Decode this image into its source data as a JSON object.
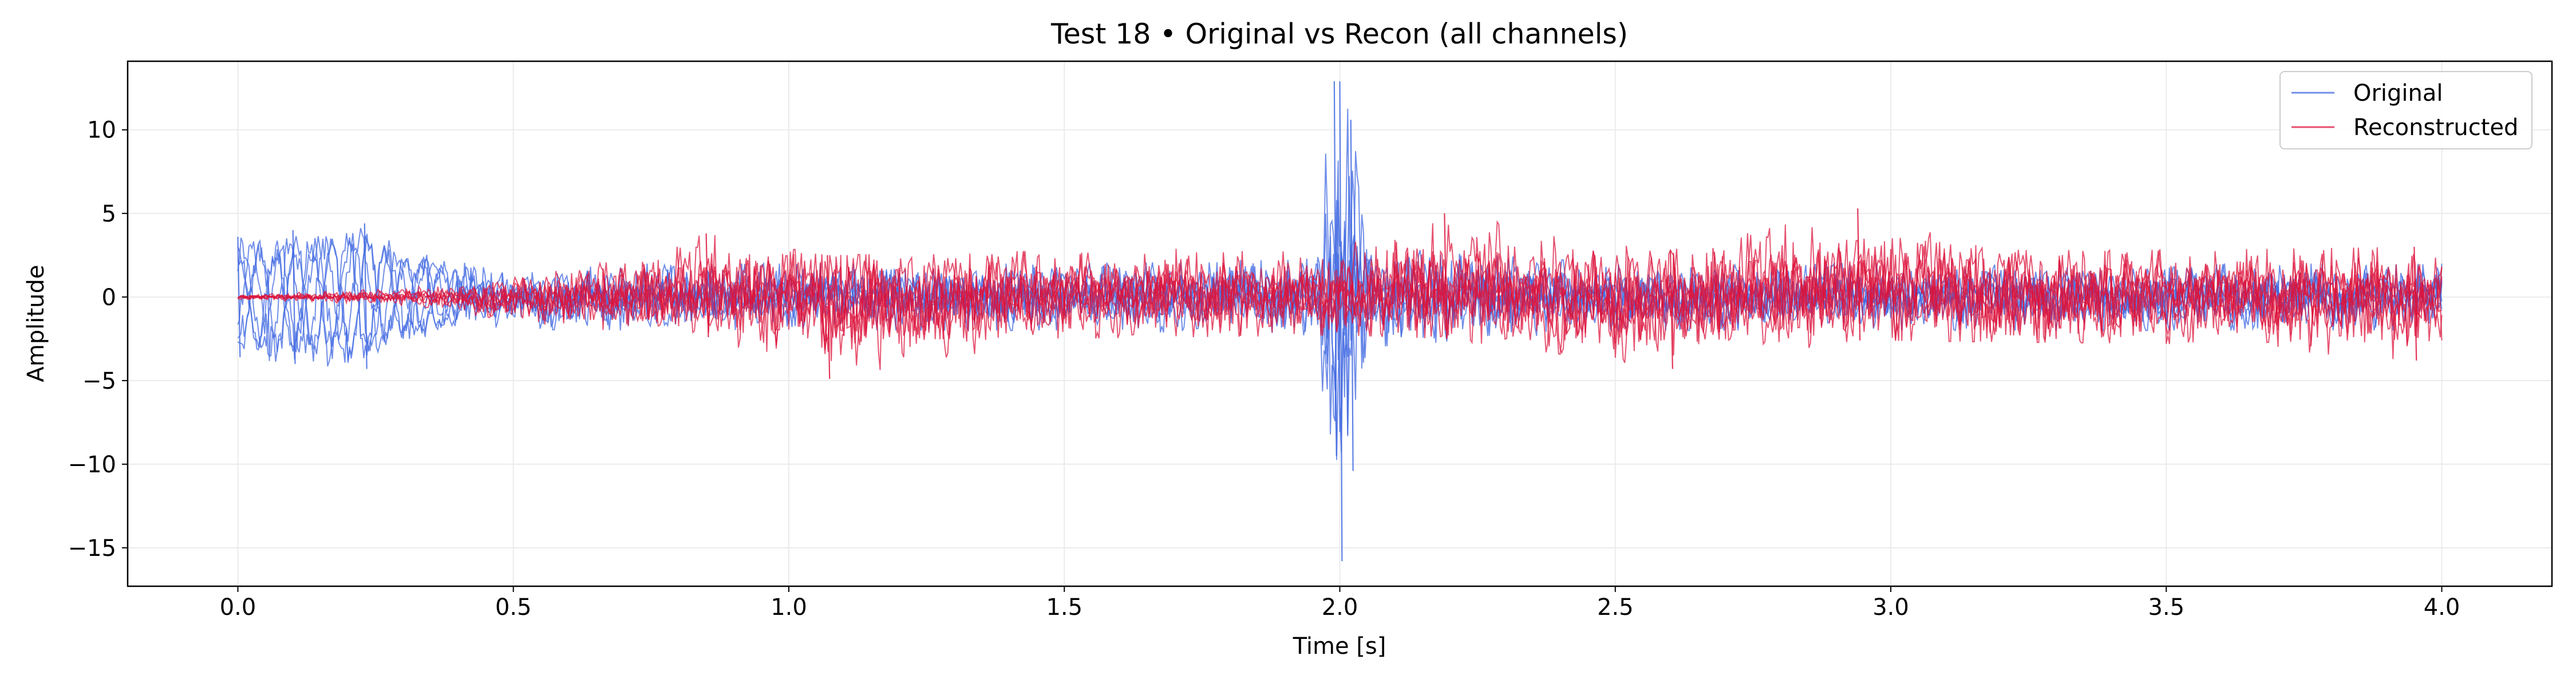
{
  "chart_data": {
    "type": "line",
    "title": "Test 18 • Original vs Recon (all channels)",
    "xlabel": "Time [s]",
    "ylabel": "Amplitude",
    "xlim": [
      -0.2,
      4.2
    ],
    "ylim": [
      -17.3,
      14.1
    ],
    "xticks": [
      0.0,
      0.5,
      1.0,
      1.5,
      2.0,
      2.5,
      3.0,
      3.5,
      4.0
    ],
    "xtick_labels": [
      "0.0",
      "0.5",
      "1.0",
      "1.5",
      "2.0",
      "2.5",
      "3.0",
      "3.5",
      "4.0"
    ],
    "yticks": [
      10,
      5,
      0,
      -5,
      -10,
      -15
    ],
    "ytick_labels": [
      "10",
      "5",
      "0",
      "−5",
      "−10",
      "−15"
    ],
    "grid": true,
    "legend_position": "top-right",
    "series": [
      {
        "name": "Original",
        "color": "#4169e1",
        "channels": 6,
        "envelope": [
          {
            "t": 0.0,
            "min": -3.6,
            "max": 3.6
          },
          {
            "t": 0.1,
            "min": -4.0,
            "max": 4.0
          },
          {
            "t": 0.23,
            "min": -4.3,
            "max": 4.4
          },
          {
            "t": 0.3,
            "min": -2.8,
            "max": 2.8
          },
          {
            "t": 0.45,
            "min": -1.8,
            "max": 1.8
          },
          {
            "t": 0.6,
            "min": -2.0,
            "max": 2.0
          },
          {
            "t": 1.0,
            "min": -2.0,
            "max": 2.0
          },
          {
            "t": 1.5,
            "min": -2.0,
            "max": 2.0
          },
          {
            "t": 1.95,
            "min": -2.3,
            "max": 2.3
          },
          {
            "t": 1.99,
            "min": -9.5,
            "max": 12.9
          },
          {
            "t": 2.0,
            "min": -15.8,
            "max": 12.9
          },
          {
            "t": 2.02,
            "min": -10.4,
            "max": 10.6
          },
          {
            "t": 2.06,
            "min": -3.0,
            "max": 3.0
          },
          {
            "t": 2.5,
            "min": -2.0,
            "max": 2.0
          },
          {
            "t": 3.0,
            "min": -2.0,
            "max": 2.0
          },
          {
            "t": 4.0,
            "min": -2.0,
            "max": 2.0
          }
        ]
      },
      {
        "name": "Reconstructed",
        "color": "#dc143c",
        "channels": 6,
        "envelope": [
          {
            "t": 0.0,
            "min": -0.15,
            "max": 0.15
          },
          {
            "t": 0.3,
            "min": -0.5,
            "max": 0.5
          },
          {
            "t": 0.45,
            "min": -1.2,
            "max": 1.2
          },
          {
            "t": 0.7,
            "min": -2.3,
            "max": 2.3
          },
          {
            "t": 0.85,
            "min": -2.4,
            "max": 3.8
          },
          {
            "t": 1.07,
            "min": -4.9,
            "max": 2.5
          },
          {
            "t": 1.5,
            "min": -2.5,
            "max": 2.8
          },
          {
            "t": 2.0,
            "min": -2.3,
            "max": 3.0
          },
          {
            "t": 2.19,
            "min": -2.5,
            "max": 5.0
          },
          {
            "t": 2.6,
            "min": -4.3,
            "max": 2.8
          },
          {
            "t": 2.94,
            "min": -2.6,
            "max": 5.3
          },
          {
            "t": 3.5,
            "min": -2.8,
            "max": 2.8
          },
          {
            "t": 3.95,
            "min": -3.8,
            "max": 3.0
          },
          {
            "t": 4.0,
            "min": -2.6,
            "max": 2.6
          }
        ]
      }
    ]
  }
}
